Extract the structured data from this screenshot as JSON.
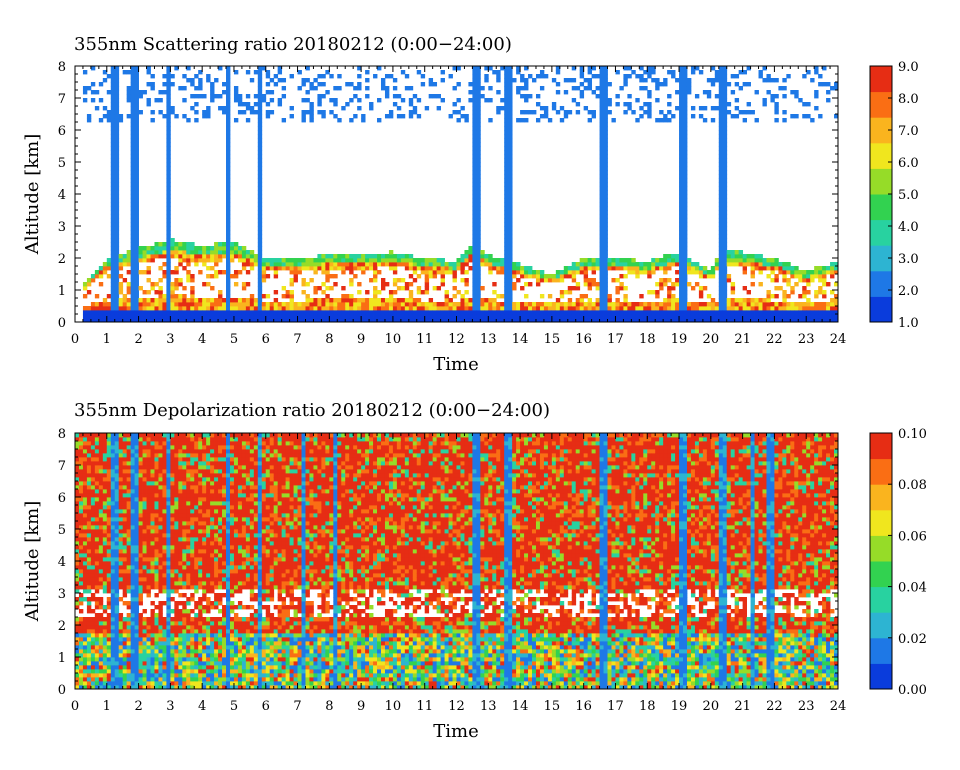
{
  "chart_data": [
    {
      "type": "heatmap",
      "title": "355nm Scattering ratio  20180212 (0:00−24:00)",
      "xlabel": "Time",
      "ylabel": "Altitude [km]",
      "xlim": [
        0,
        24
      ],
      "ylim": [
        0,
        8
      ],
      "x_ticks": [
        "0",
        "1",
        "2",
        "3",
        "4",
        "5",
        "6",
        "7",
        "8",
        "9",
        "10",
        "11",
        "12",
        "13",
        "14",
        "15",
        "16",
        "17",
        "18",
        "19",
        "20",
        "21",
        "22",
        "23",
        "24"
      ],
      "y_ticks": [
        "0",
        "1",
        "2",
        "3",
        "4",
        "5",
        "6",
        "7",
        "8"
      ],
      "colorbar": {
        "range": [
          1.0,
          9.0
        ],
        "tick_labels": [
          "1.0",
          "2.0",
          "3.0",
          "4.0",
          "5.0",
          "6.0",
          "7.0",
          "8.0",
          "9.0"
        ]
      },
      "cloud_columns_hours": [
        1.25,
        1.85,
        2.95,
        4.8,
        5.8,
        12.6,
        13.6,
        16.6,
        19.1,
        20.4
      ],
      "boundary_layer_top_km": [
        [
          0.3,
          1.2
        ],
        [
          1.0,
          2.0
        ],
        [
          2.0,
          2.3
        ],
        [
          3.0,
          2.6
        ],
        [
          4.0,
          2.4
        ],
        [
          5.0,
          2.5
        ],
        [
          6.0,
          2.0
        ],
        [
          7.0,
          2.0
        ],
        [
          8.0,
          2.1
        ],
        [
          9.0,
          2.1
        ],
        [
          10.0,
          2.2
        ],
        [
          11.0,
          2.0
        ],
        [
          12.0,
          1.9
        ],
        [
          12.5,
          2.5
        ],
        [
          13.0,
          2.1
        ],
        [
          14.0,
          1.8
        ],
        [
          15.0,
          1.5
        ],
        [
          16.0,
          2.0
        ],
        [
          17.0,
          2.0
        ],
        [
          18.0,
          1.9
        ],
        [
          19.0,
          2.2
        ],
        [
          20.0,
          1.6
        ],
        [
          20.3,
          2.2
        ],
        [
          21.0,
          2.2
        ],
        [
          22.0,
          2.0
        ],
        [
          23.0,
          1.6
        ],
        [
          24.0,
          1.9
        ]
      ]
    },
    {
      "type": "heatmap",
      "title": "355nm Depolarization ratio  20180212 (0:00−24:00)",
      "xlabel": "Time",
      "ylabel": "Altitude [km]",
      "xlim": [
        0,
        24
      ],
      "ylim": [
        0,
        8
      ],
      "x_ticks": [
        "0",
        "1",
        "2",
        "3",
        "4",
        "5",
        "6",
        "7",
        "8",
        "9",
        "10",
        "11",
        "12",
        "13",
        "14",
        "15",
        "16",
        "17",
        "18",
        "19",
        "20",
        "21",
        "22",
        "23",
        "24"
      ],
      "y_ticks": [
        "0",
        "1",
        "2",
        "3",
        "4",
        "5",
        "6",
        "7",
        "8"
      ],
      "colorbar": {
        "range": [
          0.0,
          0.1
        ],
        "tick_labels": [
          "0.00",
          "0.02",
          "0.04",
          "0.06",
          "0.08",
          "0.10"
        ]
      },
      "cloud_columns_hours": [
        1.25,
        1.85,
        2.95,
        4.8,
        5.8,
        7.2,
        8.2,
        12.6,
        13.6,
        16.6,
        19.1,
        20.4,
        21.3,
        21.9
      ],
      "gap_band_km": [
        2.2,
        3.1
      ]
    }
  ],
  "colors": {
    "palette": [
      "#0a3cdc",
      "#1e78e6",
      "#2db4d2",
      "#28d2a0",
      "#32d250",
      "#96dc28",
      "#f0e61e",
      "#fab41e",
      "#fa6e14",
      "#e62d14"
    ]
  }
}
